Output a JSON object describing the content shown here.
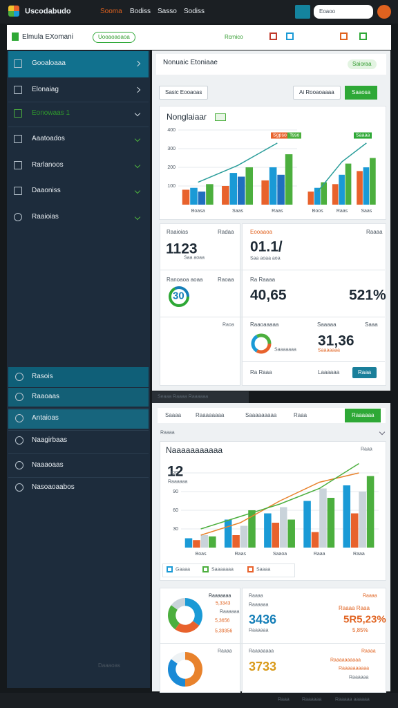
{
  "topbar": {
    "brand": "Uscodabudo",
    "nav": [
      "Sooma",
      "Bodiss",
      "Sasso",
      "Sodiss"
    ],
    "search": "Eoaoo"
  },
  "toolbar": {
    "title": "Elmula EXomani",
    "badge": "Uooaoaoaoa",
    "action": "Rcmico"
  },
  "sidebar": {
    "items": [
      "Gooaloaaa",
      "Elonaiag",
      "Eonowaas 1",
      "Aaatoados",
      "Rarlanoos",
      "Daaoniss",
      "Raaioias"
    ],
    "lower": [
      "Rasois",
      "Raaoaas",
      "Antaioas",
      "Naagirbaas",
      "Naaaoaas",
      "Nasoaoaabos"
    ],
    "bottom": "Daaaoas"
  },
  "panel1": {
    "title": "Nonuaic Etoniaae",
    "badge": "Saioraa",
    "filter": "Sasic Eooaoas",
    "tab": "Ai Rooaoaaaa",
    "button": "Saaosa",
    "chart_card": {
      "title": "Nonglaiaar",
      "legend": [
        "Sgpso",
        "Tsso",
        "Saaaa"
      ],
      "charts": [
        {
          "type": "bar",
          "categories": [
            "Boasa",
            "Saas",
            "Raas"
          ],
          "ylim": [
            0,
            400
          ],
          "yticks": [
            100,
            200,
            300,
            400
          ],
          "series": [
            {
              "color": "#e8622c",
              "values": [
                80,
                100,
                130
              ]
            },
            {
              "color": "#1a9ad6",
              "values": [
                90,
                170,
                200
              ]
            },
            {
              "color": "#1f6fbf",
              "values": [
                70,
                150,
                160
              ]
            },
            {
              "color": "#4caf3e",
              "values": [
                110,
                200,
                270
              ]
            }
          ],
          "lines": [
            {
              "color": "#2a9d9a",
              "values": [
                120,
                210,
                330
              ]
            }
          ]
        },
        {
          "type": "bar",
          "categories": [
            "Boos",
            "Raas",
            "Saas"
          ],
          "ylim": [
            0,
            400
          ],
          "series": [
            {
              "color": "#e8622c",
              "values": [
                70,
                110,
                180
              ]
            },
            {
              "color": "#1a9ad6",
              "values": [
                90,
                160,
                200
              ]
            },
            {
              "color": "#4caf3e",
              "values": [
                120,
                220,
                250
              ]
            }
          ],
          "lines": [
            {
              "color": "#2a9d9a",
              "values": [
                70,
                230,
                330
              ]
            }
          ]
        }
      ]
    },
    "stats": [
      "Raaioias",
      "Radaa",
      "1123",
      "Saa aoaa",
      "Eooaaoa",
      "Raaaa",
      "01.1/",
      "Saa aoaa aoa",
      "Ranoaoa aoaa",
      "Raoaa",
      "30",
      "Ra Raaaa",
      "40,65",
      "521%",
      "Raoa",
      "Raaoaaaaa",
      "Saaaaa",
      "Saaa",
      "Saaaaaaa",
      "31,36",
      "Saaaaaaa",
      "Ra Raaa",
      "Laaaaaa",
      "Raaa"
    ]
  },
  "panel2": {
    "tab_header": "Seaaa Raaaa Raaaaaa",
    "tabs": [
      "Saaaa",
      "Raaaaaaaa",
      "Saaaaaaaaa",
      "Raaa"
    ],
    "button": "Raaaaaa",
    "section": "Raaaa",
    "chart_card": {
      "title": "Naaaaaaaaaaa",
      "note": "Raaa",
      "kpi": "12",
      "kpi_label": "Raaaaaa",
      "legend": [
        "Gaaaa",
        "Saaaaaaa",
        "Saaaa"
      ],
      "chart": {
        "type": "bar",
        "categories": [
          "Boas",
          "Raas",
          "Saaoa",
          "Raaa",
          "Raaa"
        ],
        "ylim": [
          0,
          140
        ],
        "yticks": [
          30,
          60,
          90,
          120
        ],
        "series": [
          {
            "color": "#1a9ad6",
            "values": [
              15,
              45,
              55,
              75,
              100
            ]
          },
          {
            "color": "#e8622c",
            "values": [
              12,
              20,
              40,
              25,
              55
            ]
          },
          {
            "color": "#c9d3da",
            "values": [
              20,
              35,
              65,
              95,
              90
            ]
          },
          {
            "color": "#4caf3e",
            "values": [
              18,
              60,
              45,
              80,
              115
            ]
          }
        ],
        "lines": [
          {
            "color": "#e8822c",
            "values": [
              20,
              40,
              75,
              105,
              120
            ]
          },
          {
            "color": "#4caf3e",
            "values": [
              30,
              50,
              70,
              95,
              135
            ]
          }
        ]
      }
    },
    "cards": [
      "Raaaaaaa",
      "5,3343",
      "Raaaaaa",
      "5,3656",
      "5,39356",
      "Raaaa",
      "Raaaaaa",
      "3436",
      "Raaaaaa",
      "Raaaa",
      "Raaaa Raaa",
      "5R5,23%",
      "5,85%",
      "Raaaa",
      "Raaaaaaaa",
      "3733",
      "Raaaa",
      "Raaaaaaaaaa",
      "Raaaaaaaaaa",
      "Raaaaaa"
    ],
    "donuts": [
      {
        "type": "pie",
        "values": [
          35,
          25,
          25,
          15
        ],
        "colors": [
          "#1a9ad6",
          "#e8622c",
          "#4caf3e",
          "#c9d3da"
        ]
      },
      {
        "type": "pie",
        "values": [
          50,
          35,
          15
        ],
        "colors": [
          "#e8822c",
          "#1a8ad6",
          "#eef2f4"
        ]
      }
    ]
  },
  "footer": [
    "Raaa",
    "Raaaaaa",
    "Raaaaa aaaaaa"
  ]
}
